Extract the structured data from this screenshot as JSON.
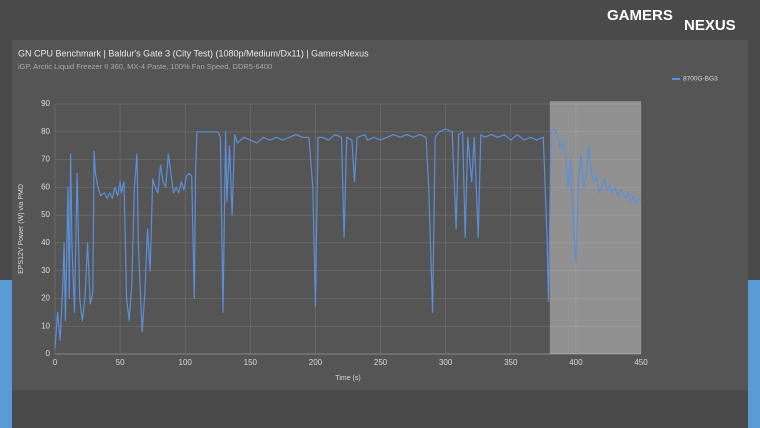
{
  "logo": {
    "left": "GAMERS",
    "right": "NEXUS"
  },
  "chart_data": {
    "type": "line",
    "title": "GN CPU Benchmark | Baldur's Gate 3 (City Test) (1080p/Medium/Dx11) | GamersNexus",
    "subtitle": "iGP, Arctic Liquid Freezer II 360, MX-4 Paste, 100% Fan Speed, DDR5-6400",
    "x_label": "Time (s)",
    "y_label": "EPS12V Power (W) via PMD",
    "x": [
      0,
      2,
      4,
      6,
      7,
      8,
      10,
      11,
      12,
      13,
      15,
      17,
      19,
      21,
      23,
      25,
      27,
      29,
      30,
      31,
      33,
      35,
      38,
      40,
      42,
      44,
      46,
      48,
      50,
      51,
      53,
      55,
      57,
      59,
      61,
      63,
      64,
      66,
      67,
      69,
      71,
      73,
      75,
      77,
      79,
      81,
      83,
      85,
      87,
      89,
      91,
      93,
      95,
      97,
      99,
      101,
      103,
      105,
      107,
      108,
      109,
      115,
      120,
      125,
      127,
      129,
      131,
      132,
      134,
      136,
      138,
      140,
      145,
      150,
      155,
      160,
      165,
      170,
      175,
      180,
      185,
      190,
      195,
      198,
      200,
      202,
      205,
      210,
      215,
      220,
      222,
      224,
      228,
      230,
      232,
      238,
      240,
      245,
      250,
      255,
      260,
      265,
      270,
      275,
      280,
      285,
      287,
      290,
      292,
      295,
      300,
      305,
      308,
      310,
      313,
      315,
      317,
      320,
      322,
      325,
      327,
      330,
      335,
      340,
      345,
      350,
      355,
      360,
      365,
      370,
      375,
      378,
      379,
      381,
      383,
      386,
      388,
      390,
      392,
      394,
      396,
      398,
      400,
      402,
      404,
      406,
      408,
      410,
      412,
      414,
      416,
      418,
      420,
      422,
      424,
      426,
      428,
      430,
      432,
      434,
      436,
      438,
      440,
      442,
      444,
      446,
      448,
      450
    ],
    "series": [
      {
        "name": "8700G-BG3",
        "color": "#5b8fd9",
        "values": [
          2,
          15,
          5,
          25,
          40,
          12,
          60,
          20,
          72,
          40,
          15,
          65,
          20,
          12,
          20,
          40,
          18,
          22,
          73,
          65,
          60,
          57,
          58,
          56,
          58,
          56,
          60,
          57,
          62,
          58,
          62,
          20,
          12,
          25,
          60,
          72,
          40,
          18,
          8,
          22,
          45,
          30,
          63,
          60,
          58,
          68,
          62,
          60,
          72,
          65,
          58,
          60,
          58,
          62,
          59,
          64,
          65,
          64,
          20,
          66,
          80,
          80,
          80,
          80,
          78,
          15,
          80,
          55,
          75,
          50,
          79,
          76,
          78,
          77,
          76,
          78,
          77,
          78,
          77,
          78,
          79,
          78,
          78,
          60,
          17,
          78,
          78,
          77,
          79,
          78,
          42,
          78,
          77,
          62,
          78,
          79,
          77,
          78,
          77,
          78,
          79,
          78,
          79,
          78,
          79,
          78,
          60,
          15,
          78,
          80,
          81,
          80,
          45,
          79,
          80,
          42,
          78,
          62,
          78,
          42,
          79,
          78,
          79,
          78,
          79,
          77,
          79,
          77,
          78,
          77,
          78,
          40,
          19,
          80,
          81,
          79,
          74,
          76,
          72,
          60,
          70,
          48,
          33,
          62,
          72,
          60,
          65,
          75,
          65,
          62,
          64,
          58,
          60,
          63,
          59,
          61,
          58,
          60,
          57,
          59,
          58,
          56,
          58,
          55,
          57,
          54,
          56,
          55
        ]
      }
    ],
    "xlim": [
      0,
      450
    ],
    "ylim": [
      0,
      90
    ],
    "xticks": [
      0,
      50,
      100,
      150,
      200,
      250,
      300,
      350,
      400,
      450
    ],
    "yticks": [
      0,
      10,
      20,
      30,
      40,
      50,
      60,
      70,
      80,
      90
    ],
    "grid": true,
    "highlight": {
      "xlim": [
        380,
        450
      ],
      "top": 91
    }
  }
}
